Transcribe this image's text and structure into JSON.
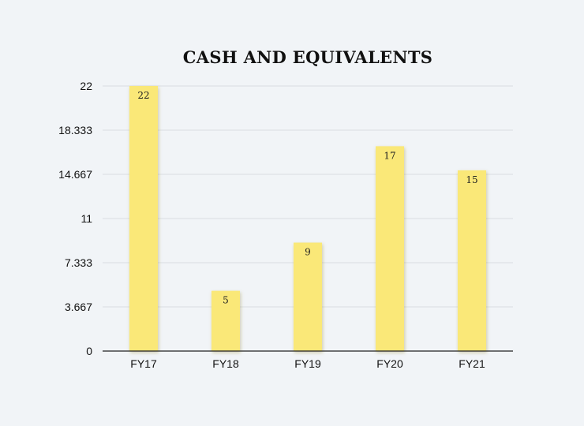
{
  "chart_data": {
    "type": "bar",
    "title": "CASH AND EQUIVALENTS",
    "categories": [
      "FY17",
      "FY18",
      "FY19",
      "FY20",
      "FY21"
    ],
    "values": [
      22,
      5,
      9,
      17,
      15
    ],
    "data_labels": [
      "22",
      "5",
      "9",
      "17",
      "15"
    ],
    "ylim": [
      0,
      22
    ],
    "y_ticks": [
      0,
      3.667,
      7.333,
      11,
      14.667,
      18.333,
      22
    ],
    "y_tick_labels": [
      "0",
      "3.667",
      "7.333",
      "11",
      "14.667",
      "18.333",
      "22"
    ],
    "grid": true,
    "xlabel": "",
    "ylabel": "",
    "colors": {
      "bar": "#fae878",
      "bar_shadow": "#b8a84a",
      "grid": "#d9dde2",
      "axis": "#222222",
      "background": "#f1f4f7"
    }
  }
}
